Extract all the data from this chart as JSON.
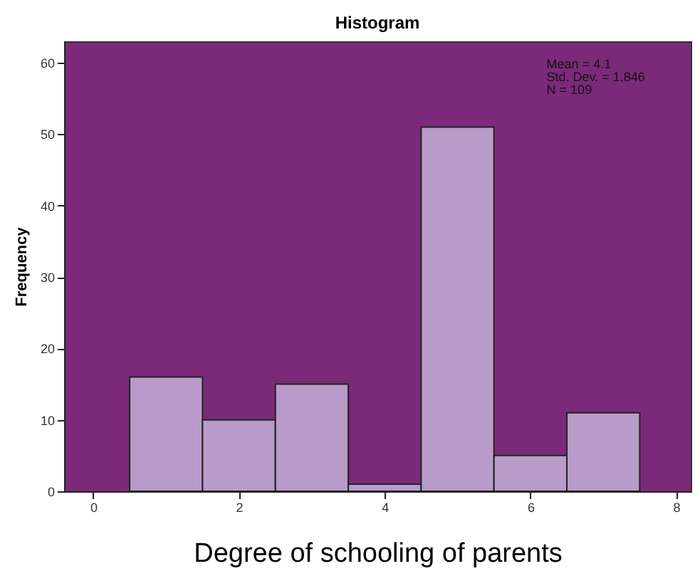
{
  "chart_data": {
    "type": "histogram",
    "title": "Histogram",
    "xlabel": "Degree of schooling of parents",
    "ylabel": "Frequency",
    "bins": [
      0.5,
      1.5,
      2.5,
      3.5,
      4.5,
      5.5,
      6.5,
      7.5
    ],
    "values": [
      16,
      10,
      15,
      1,
      51,
      5,
      11
    ],
    "color": "#b89bc8",
    "xlim": [
      -0.4,
      8.2
    ],
    "xticks": [
      0,
      2,
      4,
      6,
      8
    ],
    "ylim": [
      0,
      63
    ],
    "yticks": [
      0,
      10,
      20,
      30,
      40,
      50,
      60
    ],
    "grid": false,
    "annotations": [
      "Mean = 4.1",
      "Std. Dev. = 1.846",
      "N = 109"
    ]
  }
}
